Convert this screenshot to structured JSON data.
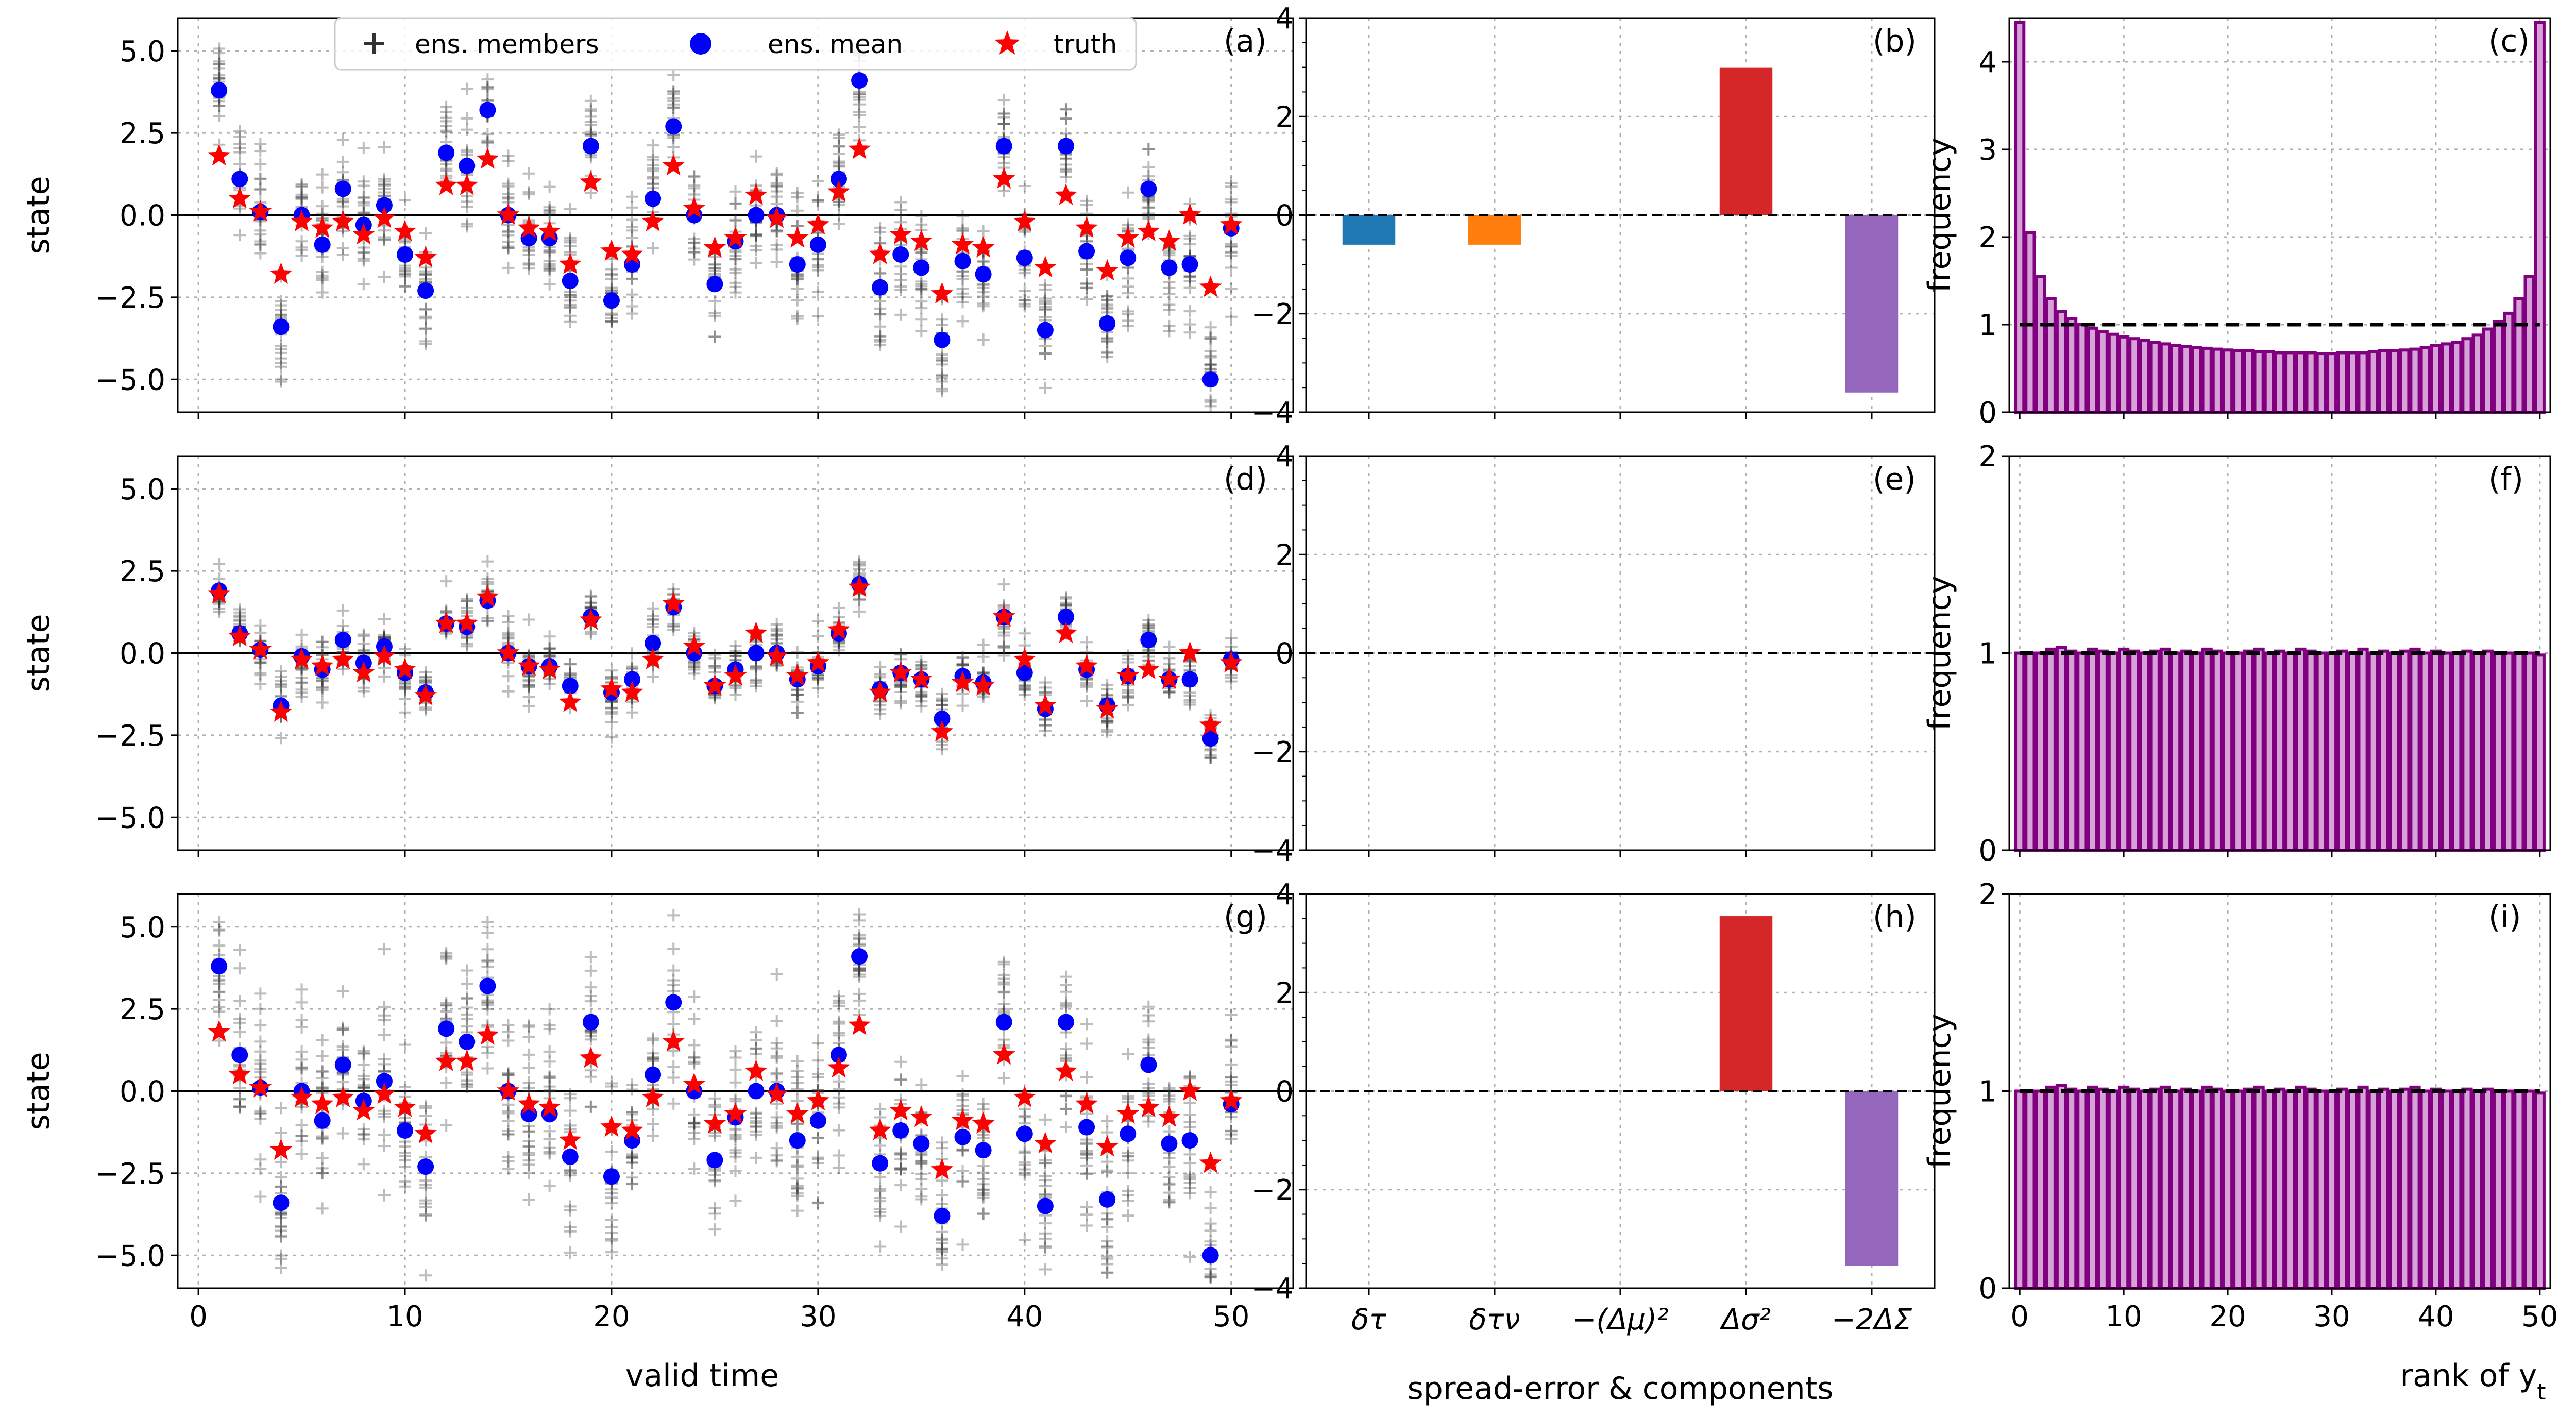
{
  "chart_data": {
    "type": "figure-grid",
    "legend": {
      "members": "ens. members",
      "mean": "ens. mean",
      "truth": "truth"
    },
    "colors": {
      "member": "#333333",
      "mean": "#0000ff",
      "truth": "#ff0000",
      "delta_tau": "#1f77b4",
      "delta_tau_nu": "#ff7f0e",
      "dmu": "#2ca02c",
      "dsigma": "#d62728",
      "dcov": "#9467bd",
      "hist": "#800080"
    },
    "state_axis": {
      "ylabel": "state",
      "xlabel": "valid time",
      "xlim": [
        -1,
        53
      ],
      "ylim": [
        -6,
        6
      ],
      "xticks": [
        "0",
        "10",
        "20",
        "30",
        "40",
        "50"
      ],
      "yticks": [
        "−5.0",
        "−2.5",
        "0.0",
        "2.5",
        "5.0"
      ]
    },
    "bar_axis": {
      "xlabel": "spread-error & components",
      "ylim": [
        -4,
        4
      ],
      "yticks": [
        "−4",
        "−2",
        "0",
        "2",
        "4"
      ],
      "categories": [
        "δτ",
        "δτν",
        "−(Δμ)²",
        "Δσ²",
        "−2ΔΣ"
      ]
    },
    "rank_axis": {
      "xlabel": "rank of yt",
      "ylabel": "frequency",
      "xlim": [
        -1,
        51
      ],
      "xticks": [
        "0",
        "10",
        "20",
        "30",
        "40",
        "50"
      ]
    },
    "truth": [
      1.8,
      0.5,
      0.1,
      -1.8,
      -0.2,
      -0.4,
      -0.2,
      -0.6,
      -0.1,
      -0.5,
      -1.3,
      0.9,
      0.9,
      1.7,
      0.0,
      -0.4,
      -0.5,
      -1.5,
      1.0,
      -1.1,
      -1.2,
      -0.2,
      1.5,
      0.2,
      -1.0,
      -0.7,
      0.6,
      -0.1,
      -0.7,
      -0.3,
      0.7,
      2.0,
      -1.2,
      -0.6,
      -0.8,
      -2.4,
      -0.9,
      -1.0,
      1.1,
      -0.2,
      -1.6,
      0.6,
      -0.4,
      -1.7,
      -0.7,
      -0.5,
      -0.8,
      0.0,
      -2.2,
      -0.3
    ],
    "mean_miscal": [
      3.8,
      1.1,
      0.1,
      -3.4,
      0.0,
      -0.9,
      0.8,
      -0.3,
      0.3,
      -1.2,
      -2.3,
      1.9,
      1.5,
      3.2,
      0.0,
      -0.7,
      -0.7,
      -2.0,
      2.1,
      -2.6,
      -1.5,
      0.5,
      2.7,
      0.0,
      -2.1,
      -0.8,
      0.0,
      0.0,
      -1.5,
      -0.9,
      1.1,
      4.1,
      -2.2,
      -1.2,
      -1.6,
      -3.8,
      -1.4,
      -1.8,
      2.1,
      -1.3,
      -3.5,
      2.1,
      -1.1,
      -3.3,
      -1.3,
      0.8,
      -1.6,
      -1.5,
      -5.0,
      -0.4
    ],
    "mean_calib": [
      1.9,
      0.6,
      0.1,
      -1.6,
      -0.1,
      -0.5,
      0.4,
      -0.3,
      0.2,
      -0.6,
      -1.2,
      0.9,
      0.8,
      1.6,
      0.0,
      -0.4,
      -0.4,
      -1.0,
      1.1,
      -1.2,
      -0.8,
      0.3,
      1.4,
      0.0,
      -1.0,
      -0.5,
      0.0,
      0.0,
      -0.8,
      -0.4,
      0.6,
      2.1,
      -1.1,
      -0.6,
      -0.8,
      -2.0,
      -0.7,
      -0.9,
      1.1,
      -0.6,
      -1.7,
      1.1,
      -0.5,
      -1.6,
      -0.7,
      0.4,
      -0.8,
      -0.8,
      -2.6,
      -0.2
    ],
    "panels": [
      {
        "state_label": "(a)",
        "bar_label": "(b)",
        "rank_label": "(c)",
        "bars": [
          -0.6,
          -0.6,
          0.0,
          3.0,
          -3.6
        ],
        "rank_ylim": [
          0,
          4.5
        ],
        "rank_yticks": [
          "0",
          "1",
          "2",
          "3",
          "4"
        ],
        "rank_shape": "u-shaped"
      },
      {
        "state_label": "(d)",
        "bar_label": "(e)",
        "rank_label": "(f)",
        "bars": [
          0,
          0,
          0,
          0,
          0
        ],
        "rank_ylim": [
          0,
          2
        ],
        "rank_yticks": [
          "0",
          "1",
          "2"
        ],
        "rank_shape": "flat"
      },
      {
        "state_label": "(g)",
        "bar_label": "(h)",
        "rank_label": "(i)",
        "bars": [
          0,
          0,
          0,
          3.55,
          -3.55
        ],
        "rank_ylim": [
          0,
          2
        ],
        "rank_yticks": [
          "0",
          "1",
          "2"
        ],
        "rank_shape": "flat"
      }
    ],
    "rank_hist": {
      "u-shaped": [
        4.45,
        2.05,
        1.55,
        1.3,
        1.15,
        1.07,
        1.0,
        0.96,
        0.92,
        0.89,
        0.86,
        0.84,
        0.82,
        0.8,
        0.78,
        0.76,
        0.75,
        0.74,
        0.73,
        0.72,
        0.71,
        0.7,
        0.7,
        0.69,
        0.69,
        0.68,
        0.68,
        0.68,
        0.68,
        0.67,
        0.67,
        0.68,
        0.68,
        0.68,
        0.69,
        0.7,
        0.7,
        0.71,
        0.72,
        0.74,
        0.76,
        0.78,
        0.8,
        0.84,
        0.88,
        0.95,
        1.03,
        1.13,
        1.3,
        1.55,
        4.45
      ],
      "flat": [
        1.0,
        1.0,
        1.0,
        1.02,
        1.03,
        1.01,
        1.0,
        1.02,
        1.01,
        1.0,
        1.02,
        1.01,
        1.0,
        1.01,
        1.02,
        1.0,
        1.01,
        1.0,
        1.02,
        1.01,
        1.0,
        1.0,
        1.01,
        1.02,
        1.0,
        1.01,
        1.0,
        1.02,
        1.01,
        1.0,
        1.0,
        1.01,
        1.0,
        1.02,
        1.0,
        1.01,
        1.0,
        1.01,
        1.02,
        1.0,
        1.01,
        1.0,
        1.0,
        1.01,
        1.0,
        1.01,
        1.0,
        1.0,
        1.0,
        1.0,
        0.99
      ]
    }
  }
}
